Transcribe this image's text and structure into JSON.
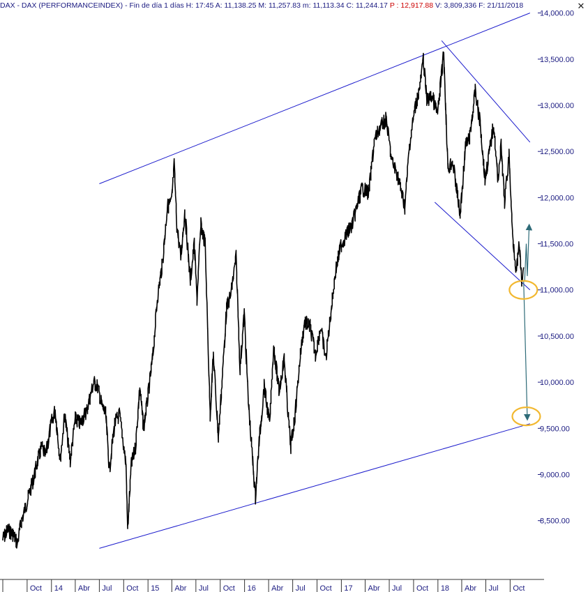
{
  "header": {
    "instrument": "DAX - DAX (PERFORMANCEINDEX) - Fin de día 1 días",
    "h_label": "H:",
    "h_value": "17:45",
    "a_label": "A:",
    "a_value": "11,138.25",
    "m_label": "M:",
    "m_value": "11,257.83",
    "mn_label": "m:",
    "mn_value": "11,113.34",
    "c_label": "C:",
    "c_value": "11,244.17",
    "p_label": "P :",
    "p_value": "12,917.88",
    "v_label": "V:",
    "v_value": "3,809,336",
    "f_label": "F:",
    "f_value": "21/11/2018",
    "close_glyph": "✕"
  },
  "colors": {
    "price": "#000000",
    "trendline": "#1a1acc",
    "projection": "#2e6b78",
    "highlight": "#f2b830",
    "axis_text": "#1a1a80"
  },
  "chart_data": {
    "type": "line",
    "title": "",
    "xlabel": "",
    "ylabel": "",
    "ylim": [
      8150,
      14050
    ],
    "y_ticks": [
      "14,000.00",
      "13,500.00",
      "13,000.00",
      "12,500.00",
      "12,000.00",
      "11,500.00",
      "11,000.00",
      "10,500.00",
      "10,000.00",
      "9,500.00",
      "9,000.00",
      "8,500.00"
    ],
    "y_tick_values": [
      14000,
      13500,
      13000,
      12500,
      12000,
      11500,
      11000,
      10500,
      10000,
      9500,
      9000,
      8500
    ],
    "x_ticks": [
      "Oct",
      "14",
      "Abr",
      "Jul",
      "Oct",
      "15",
      "Abr",
      "Jul",
      "Oct",
      "16",
      "Abr",
      "Jul",
      "Oct",
      "17",
      "Abr",
      "Jul",
      "Oct",
      "18",
      "Abr",
      "Jul",
      "Oct"
    ],
    "x_tick_dates": [
      "2013-10-01",
      "2014-01-01",
      "2014-04-01",
      "2014-07-01",
      "2014-10-01",
      "2015-01-01",
      "2015-04-01",
      "2015-07-01",
      "2015-10-01",
      "2016-01-01",
      "2016-04-01",
      "2016-07-01",
      "2016-10-01",
      "2017-01-01",
      "2017-04-01",
      "2017-07-01",
      "2017-10-01",
      "2018-01-01",
      "2018-04-01",
      "2018-07-01",
      "2018-10-01"
    ],
    "x_range": [
      "2013-07-01",
      "2019-02-01"
    ],
    "series": [
      {
        "values": [
          [
            "2013-07-01",
            8300
          ],
          [
            "2013-07-20",
            8400
          ],
          [
            "2013-08-10",
            8350
          ],
          [
            "2013-08-25",
            8250
          ],
          [
            "2013-09-10",
            8500
          ],
          [
            "2013-09-25",
            8650
          ],
          [
            "2013-10-10",
            8800
          ],
          [
            "2013-10-25",
            8950
          ],
          [
            "2013-11-10",
            9150
          ],
          [
            "2013-11-25",
            9300
          ],
          [
            "2013-12-10",
            9200
          ],
          [
            "2013-12-31",
            9550
          ],
          [
            "2014-01-15",
            9700
          ],
          [
            "2014-02-03",
            9150
          ],
          [
            "2014-02-20",
            9650
          ],
          [
            "2014-03-13",
            9150
          ],
          [
            "2014-04-01",
            9600
          ],
          [
            "2014-04-20",
            9550
          ],
          [
            "2014-05-15",
            9700
          ],
          [
            "2014-06-10",
            10000
          ],
          [
            "2014-06-25",
            9950
          ],
          [
            "2014-07-10",
            9750
          ],
          [
            "2014-07-25",
            9650
          ],
          [
            "2014-08-08",
            9050
          ],
          [
            "2014-08-28",
            9550
          ],
          [
            "2014-09-15",
            9650
          ],
          [
            "2014-09-25",
            9450
          ],
          [
            "2014-10-10",
            9100
          ],
          [
            "2014-10-16",
            8400
          ],
          [
            "2014-10-30",
            9100
          ],
          [
            "2014-11-15",
            9300
          ],
          [
            "2014-12-01",
            9950
          ],
          [
            "2014-12-15",
            9500
          ],
          [
            "2015-01-01",
            9850
          ],
          [
            "2015-01-20",
            10300
          ],
          [
            "2015-02-05",
            10900
          ],
          [
            "2015-02-25",
            11300
          ],
          [
            "2015-03-15",
            11900
          ],
          [
            "2015-03-31",
            11950
          ],
          [
            "2015-04-10",
            12350
          ],
          [
            "2015-04-20",
            11700
          ],
          [
            "2015-05-05",
            11350
          ],
          [
            "2015-05-20",
            11850
          ],
          [
            "2015-06-10",
            11100
          ],
          [
            "2015-06-25",
            11500
          ],
          [
            "2015-07-05",
            10900
          ],
          [
            "2015-07-20",
            11700
          ],
          [
            "2015-08-05",
            11500
          ],
          [
            "2015-08-24",
            9650
          ],
          [
            "2015-09-05",
            10300
          ],
          [
            "2015-09-24",
            9400
          ],
          [
            "2015-10-10",
            10100
          ],
          [
            "2015-10-25",
            10800
          ],
          [
            "2015-11-10",
            10950
          ],
          [
            "2015-11-30",
            11350
          ],
          [
            "2015-12-15",
            10150
          ],
          [
            "2015-12-31",
            10750
          ],
          [
            "2016-01-15",
            9800
          ],
          [
            "2016-02-11",
            8750
          ],
          [
            "2016-02-25",
            9350
          ],
          [
            "2016-03-15",
            9950
          ],
          [
            "2016-04-05",
            9550
          ],
          [
            "2016-04-20",
            10400
          ],
          [
            "2016-05-10",
            9900
          ],
          [
            "2016-05-30",
            10250
          ],
          [
            "2016-06-15",
            9600
          ],
          [
            "2016-06-24",
            9300
          ],
          [
            "2016-07-10",
            9650
          ],
          [
            "2016-07-30",
            10300
          ],
          [
            "2016-08-15",
            10650
          ],
          [
            "2016-09-05",
            10600
          ],
          [
            "2016-09-25",
            10300
          ],
          [
            "2016-10-15",
            10600
          ],
          [
            "2016-11-03",
            10250
          ],
          [
            "2016-11-20",
            10700
          ],
          [
            "2016-12-10",
            11200
          ],
          [
            "2016-12-30",
            11480
          ],
          [
            "2017-01-20",
            11600
          ],
          [
            "2017-02-10",
            11700
          ],
          [
            "2017-03-01",
            11900
          ],
          [
            "2017-03-20",
            12100
          ],
          [
            "2017-04-15",
            12050
          ],
          [
            "2017-05-05",
            12600
          ],
          [
            "2017-05-25",
            12750
          ],
          [
            "2017-06-20",
            12850
          ],
          [
            "2017-07-10",
            12400
          ],
          [
            "2017-08-01",
            12250
          ],
          [
            "2017-08-29",
            11900
          ],
          [
            "2017-09-15",
            12550
          ],
          [
            "2017-10-05",
            12950
          ],
          [
            "2017-10-25",
            13200
          ],
          [
            "2017-11-07",
            13500
          ],
          [
            "2017-11-20",
            13050
          ],
          [
            "2017-12-10",
            13100
          ],
          [
            "2017-12-31",
            12900
          ],
          [
            "2018-01-23",
            13570
          ],
          [
            "2018-02-08",
            12300
          ],
          [
            "2018-02-25",
            12400
          ],
          [
            "2018-03-15",
            12050
          ],
          [
            "2018-03-26",
            11800
          ],
          [
            "2018-04-15",
            12550
          ],
          [
            "2018-05-01",
            12650
          ],
          [
            "2018-05-22",
            13150
          ],
          [
            "2018-06-10",
            12800
          ],
          [
            "2018-06-28",
            12200
          ],
          [
            "2018-07-15",
            12500
          ],
          [
            "2018-07-31",
            12800
          ],
          [
            "2018-08-15",
            12200
          ],
          [
            "2018-08-28",
            12550
          ],
          [
            "2018-09-10",
            11950
          ],
          [
            "2018-09-27",
            12450
          ],
          [
            "2018-10-10",
            11600
          ],
          [
            "2018-10-25",
            11200
          ],
          [
            "2018-11-05",
            11500
          ],
          [
            "2018-11-14",
            11050
          ],
          [
            "2018-11-21",
            11244
          ]
        ]
      }
    ],
    "grid": false,
    "legend": "none"
  },
  "annotations": {
    "trend_lines": [
      {
        "from": [
          "2014-07-01",
          12150
        ],
        "to": [
          "2018-12-15",
          14000
        ]
      },
      {
        "from": [
          "2014-07-01",
          8200
        ],
        "to": [
          "2018-12-15",
          9550
        ]
      },
      {
        "from": [
          "2018-01-15",
          13700
        ],
        "to": [
          "2018-12-15",
          12600
        ]
      },
      {
        "from": [
          "2017-12-20",
          11950
        ],
        "to": [
          "2018-12-15",
          11000
        ]
      }
    ],
    "projection_arrows": [
      {
        "from": [
          "2018-11-21",
          11100
        ],
        "to": [
          "2018-12-05",
          9600
        ]
      },
      {
        "from": [
          "2018-11-25",
          11100
        ],
        "via": [
          [
            "2018-12-01",
            11500
          ],
          [
            "2018-12-05",
            11150
          ]
        ],
        "to": [
          "2018-12-12",
          11700
        ]
      }
    ],
    "ellipses": [
      {
        "center": [
          "2018-11-20",
          11000
        ]
      },
      {
        "center": [
          "2018-12-01",
          9630
        ]
      }
    ]
  }
}
